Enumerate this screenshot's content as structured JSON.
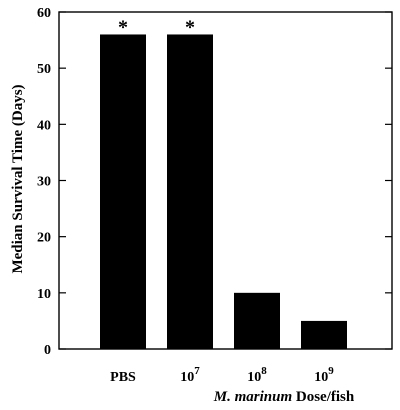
{
  "chart_data": {
    "type": "bar",
    "categories": [
      "PBS",
      "10^7",
      "10^8",
      "10^9"
    ],
    "category_labels": [
      {
        "base": "PBS",
        "exp": ""
      },
      {
        "base": "10",
        "exp": "7"
      },
      {
        "base": "10",
        "exp": "8"
      },
      {
        "base": "10",
        "exp": "9"
      }
    ],
    "values": [
      56,
      56,
      10,
      5
    ],
    "annotations": [
      "*",
      "*",
      "",
      ""
    ],
    "ylabel": "Median Survival Time (Days)",
    "xlabel": {
      "italic": "M. marinum",
      "rest": " Dose/fish"
    },
    "ylim": [
      0,
      60
    ],
    "yticks": [
      0,
      10,
      20,
      30,
      40,
      50,
      60
    ],
    "grid": false,
    "bar_color": "#000000"
  }
}
